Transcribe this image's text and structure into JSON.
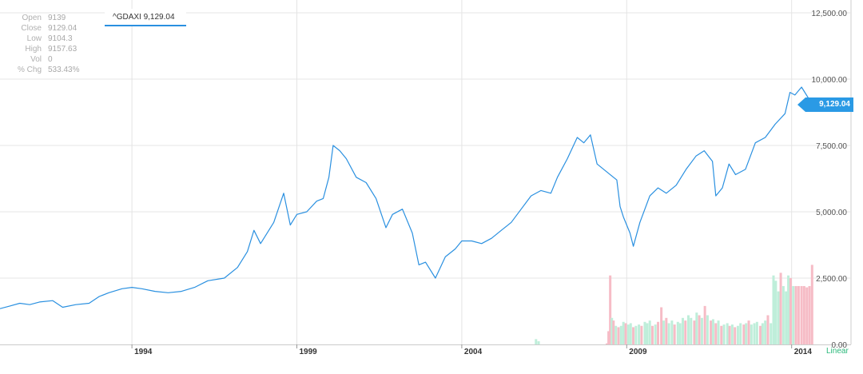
{
  "ticker": {
    "label": "^GDAXI 9,129.04"
  },
  "ohlc": [
    {
      "label": "Open",
      "value": "9139"
    },
    {
      "label": "Close",
      "value": "9129.04"
    },
    {
      "label": "Low",
      "value": "9104.3"
    },
    {
      "label": "High",
      "value": "9157.63"
    },
    {
      "label": "Vol",
      "value": "0"
    },
    {
      "label": "% Chg",
      "value": "533.43%"
    }
  ],
  "current_price": {
    "label": "9,129.04",
    "value": 9129.04
  },
  "scale_mode": "Linear",
  "colors": {
    "line": "#2a90e0",
    "volume_up": "#bfeeda",
    "volume_down": "#f6bcc6",
    "grid": "#e4e4e4"
  },
  "chart_data": {
    "type": "line",
    "title": "",
    "xlabel": "",
    "ylabel": "",
    "series": [
      {
        "values": [
          [
            1990.0,
            1350
          ],
          [
            1990.3,
            1450
          ],
          [
            1990.6,
            1550
          ],
          [
            1990.9,
            1500
          ],
          [
            1991.2,
            1600
          ],
          [
            1991.6,
            1650
          ],
          [
            1991.9,
            1400
          ],
          [
            1992.3,
            1500
          ],
          [
            1992.7,
            1550
          ],
          [
            1993.0,
            1800
          ],
          [
            1993.3,
            1950
          ],
          [
            1993.7,
            2100
          ],
          [
            1994.0,
            2150
          ],
          [
            1994.3,
            2100
          ],
          [
            1994.7,
            2000
          ],
          [
            1995.1,
            1950
          ],
          [
            1995.5,
            2000
          ],
          [
            1995.9,
            2150
          ],
          [
            1996.3,
            2400
          ],
          [
            1996.8,
            2500
          ],
          [
            1997.2,
            2900
          ],
          [
            1997.5,
            3500
          ],
          [
            1997.7,
            4300
          ],
          [
            1997.9,
            3800
          ],
          [
            1998.3,
            4600
          ],
          [
            1998.6,
            5700
          ],
          [
            1998.8,
            4500
          ],
          [
            1999.0,
            4900
          ],
          [
            1999.3,
            5000
          ],
          [
            1999.6,
            5400
          ],
          [
            1999.8,
            5500
          ],
          [
            1999.97,
            6300
          ],
          [
            2000.1,
            7500
          ],
          [
            2000.3,
            7300
          ],
          [
            2000.5,
            7000
          ],
          [
            2000.8,
            6300
          ],
          [
            2001.1,
            6100
          ],
          [
            2001.4,
            5500
          ],
          [
            2001.7,
            4400
          ],
          [
            2001.9,
            4900
          ],
          [
            2002.2,
            5100
          ],
          [
            2002.5,
            4200
          ],
          [
            2002.7,
            3000
          ],
          [
            2002.9,
            3100
          ],
          [
            2003.2,
            2500
          ],
          [
            2003.5,
            3300
          ],
          [
            2003.8,
            3600
          ],
          [
            2004.0,
            3900
          ],
          [
            2004.3,
            3900
          ],
          [
            2004.6,
            3800
          ],
          [
            2004.9,
            4000
          ],
          [
            2005.2,
            4300
          ],
          [
            2005.5,
            4600
          ],
          [
            2005.8,
            5100
          ],
          [
            2006.1,
            5600
          ],
          [
            2006.4,
            5800
          ],
          [
            2006.7,
            5700
          ],
          [
            2006.9,
            6300
          ],
          [
            2007.2,
            7000
          ],
          [
            2007.5,
            7800
          ],
          [
            2007.7,
            7600
          ],
          [
            2007.9,
            7900
          ],
          [
            2008.1,
            6800
          ],
          [
            2008.4,
            6500
          ],
          [
            2008.7,
            6200
          ],
          [
            2008.8,
            5200
          ],
          [
            2008.9,
            4800
          ],
          [
            2009.1,
            4200
          ],
          [
            2009.2,
            3700
          ],
          [
            2009.4,
            4600
          ],
          [
            2009.7,
            5600
          ],
          [
            2009.95,
            5900
          ],
          [
            2010.2,
            5700
          ],
          [
            2010.5,
            6000
          ],
          [
            2010.8,
            6600
          ],
          [
            2011.1,
            7100
          ],
          [
            2011.35,
            7300
          ],
          [
            2011.6,
            6900
          ],
          [
            2011.7,
            5600
          ],
          [
            2011.9,
            5900
          ],
          [
            2012.1,
            6800
          ],
          [
            2012.3,
            6400
          ],
          [
            2012.6,
            6600
          ],
          [
            2012.9,
            7600
          ],
          [
            2013.2,
            7800
          ],
          [
            2013.5,
            8300
          ],
          [
            2013.8,
            8700
          ],
          [
            2013.95,
            9500
          ],
          [
            2014.1,
            9400
          ],
          [
            2014.3,
            9700
          ],
          [
            2014.5,
            9300
          ],
          [
            2014.62,
            9200
          ],
          [
            2014.7,
            9129
          ]
        ]
      }
    ],
    "volume": {
      "values": [
        [
          2006.25,
          200,
          "up"
        ],
        [
          2006.33,
          120,
          "up"
        ],
        [
          2008.4,
          40,
          "down"
        ],
        [
          2008.45,
          500,
          "down"
        ],
        [
          2008.5,
          2600,
          "down"
        ],
        [
          2008.55,
          1000,
          "up"
        ],
        [
          2008.6,
          900,
          "down"
        ],
        [
          2008.67,
          700,
          "up"
        ],
        [
          2008.75,
          650,
          "down"
        ],
        [
          2008.83,
          700,
          "up"
        ],
        [
          2008.9,
          850,
          "up"
        ],
        [
          2008.97,
          800,
          "down"
        ],
        [
          2009.05,
          750,
          "up"
        ],
        [
          2009.12,
          800,
          "up"
        ],
        [
          2009.2,
          650,
          "down"
        ],
        [
          2009.28,
          700,
          "up"
        ],
        [
          2009.37,
          750,
          "up"
        ],
        [
          2009.45,
          700,
          "down"
        ],
        [
          2009.55,
          850,
          "up"
        ],
        [
          2009.62,
          800,
          "up"
        ],
        [
          2009.7,
          900,
          "up"
        ],
        [
          2009.78,
          700,
          "down"
        ],
        [
          2009.87,
          750,
          "up"
        ],
        [
          2009.95,
          850,
          "down"
        ],
        [
          2010.05,
          1400,
          "down"
        ],
        [
          2010.12,
          900,
          "up"
        ],
        [
          2010.2,
          1000,
          "down"
        ],
        [
          2010.28,
          800,
          "up"
        ],
        [
          2010.37,
          900,
          "up"
        ],
        [
          2010.45,
          750,
          "down"
        ],
        [
          2010.55,
          850,
          "up"
        ],
        [
          2010.62,
          800,
          "up"
        ],
        [
          2010.7,
          1000,
          "up"
        ],
        [
          2010.78,
          900,
          "down"
        ],
        [
          2010.87,
          1100,
          "up"
        ],
        [
          2010.95,
          1000,
          "up"
        ],
        [
          2011.05,
          900,
          "down"
        ],
        [
          2011.12,
          1200,
          "up"
        ],
        [
          2011.2,
          1100,
          "down"
        ],
        [
          2011.28,
          1000,
          "up"
        ],
        [
          2011.37,
          1450,
          "down"
        ],
        [
          2011.45,
          1100,
          "up"
        ],
        [
          2011.55,
          900,
          "down"
        ],
        [
          2011.62,
          950,
          "up"
        ],
        [
          2011.7,
          800,
          "down"
        ],
        [
          2011.78,
          900,
          "up"
        ],
        [
          2011.87,
          700,
          "down"
        ],
        [
          2011.95,
          750,
          "up"
        ],
        [
          2012.05,
          800,
          "up"
        ],
        [
          2012.12,
          700,
          "down"
        ],
        [
          2012.2,
          750,
          "up"
        ],
        [
          2012.28,
          650,
          "down"
        ],
        [
          2012.37,
          700,
          "up"
        ],
        [
          2012.45,
          800,
          "up"
        ],
        [
          2012.55,
          750,
          "down"
        ],
        [
          2012.62,
          800,
          "up"
        ],
        [
          2012.7,
          900,
          "down"
        ],
        [
          2012.78,
          750,
          "up"
        ],
        [
          2012.87,
          800,
          "up"
        ],
        [
          2012.95,
          850,
          "up"
        ],
        [
          2013.05,
          700,
          "down"
        ],
        [
          2013.12,
          800,
          "up"
        ],
        [
          2013.2,
          900,
          "up"
        ],
        [
          2013.28,
          1100,
          "down"
        ],
        [
          2013.37,
          800,
          "up"
        ],
        [
          2013.45,
          2600,
          "up"
        ],
        [
          2013.52,
          2400,
          "up"
        ],
        [
          2013.6,
          2000,
          "up"
        ],
        [
          2013.67,
          2700,
          "down"
        ],
        [
          2013.75,
          2200,
          "up"
        ],
        [
          2013.83,
          2000,
          "up"
        ],
        [
          2013.9,
          2600,
          "up"
        ],
        [
          2013.97,
          2500,
          "down"
        ],
        [
          2014.05,
          2200,
          "up"
        ],
        [
          2014.13,
          2200,
          "down"
        ],
        [
          2014.21,
          2200,
          "down"
        ],
        [
          2014.3,
          2200,
          "down"
        ],
        [
          2014.38,
          2200,
          "down"
        ],
        [
          2014.46,
          2150,
          "down"
        ],
        [
          2014.54,
          2200,
          "down"
        ],
        [
          2014.62,
          3000,
          "down"
        ]
      ]
    },
    "x_axis": {
      "range": [
        1990.0,
        2015.8
      ],
      "ticks": [
        {
          "label": "1994",
          "value": 1994.0
        },
        {
          "label": "1999",
          "value": 1999.0
        },
        {
          "label": "2004",
          "value": 2004.0
        },
        {
          "label": "2009",
          "value": 2009.0
        },
        {
          "label": "2014",
          "value": 2014.0
        }
      ]
    },
    "y_axis": {
      "range": [
        0,
        12500
      ],
      "ticks": [
        {
          "label": "0.00",
          "value": 0
        },
        {
          "label": "2,500.00",
          "value": 2500
        },
        {
          "label": "5,000.00",
          "value": 5000
        },
        {
          "label": "7,500.00",
          "value": 7500
        },
        {
          "label": "10,000.00",
          "value": 10000
        },
        {
          "label": "12,500.00",
          "value": 12500
        }
      ],
      "position": "right"
    },
    "grid": true
  }
}
